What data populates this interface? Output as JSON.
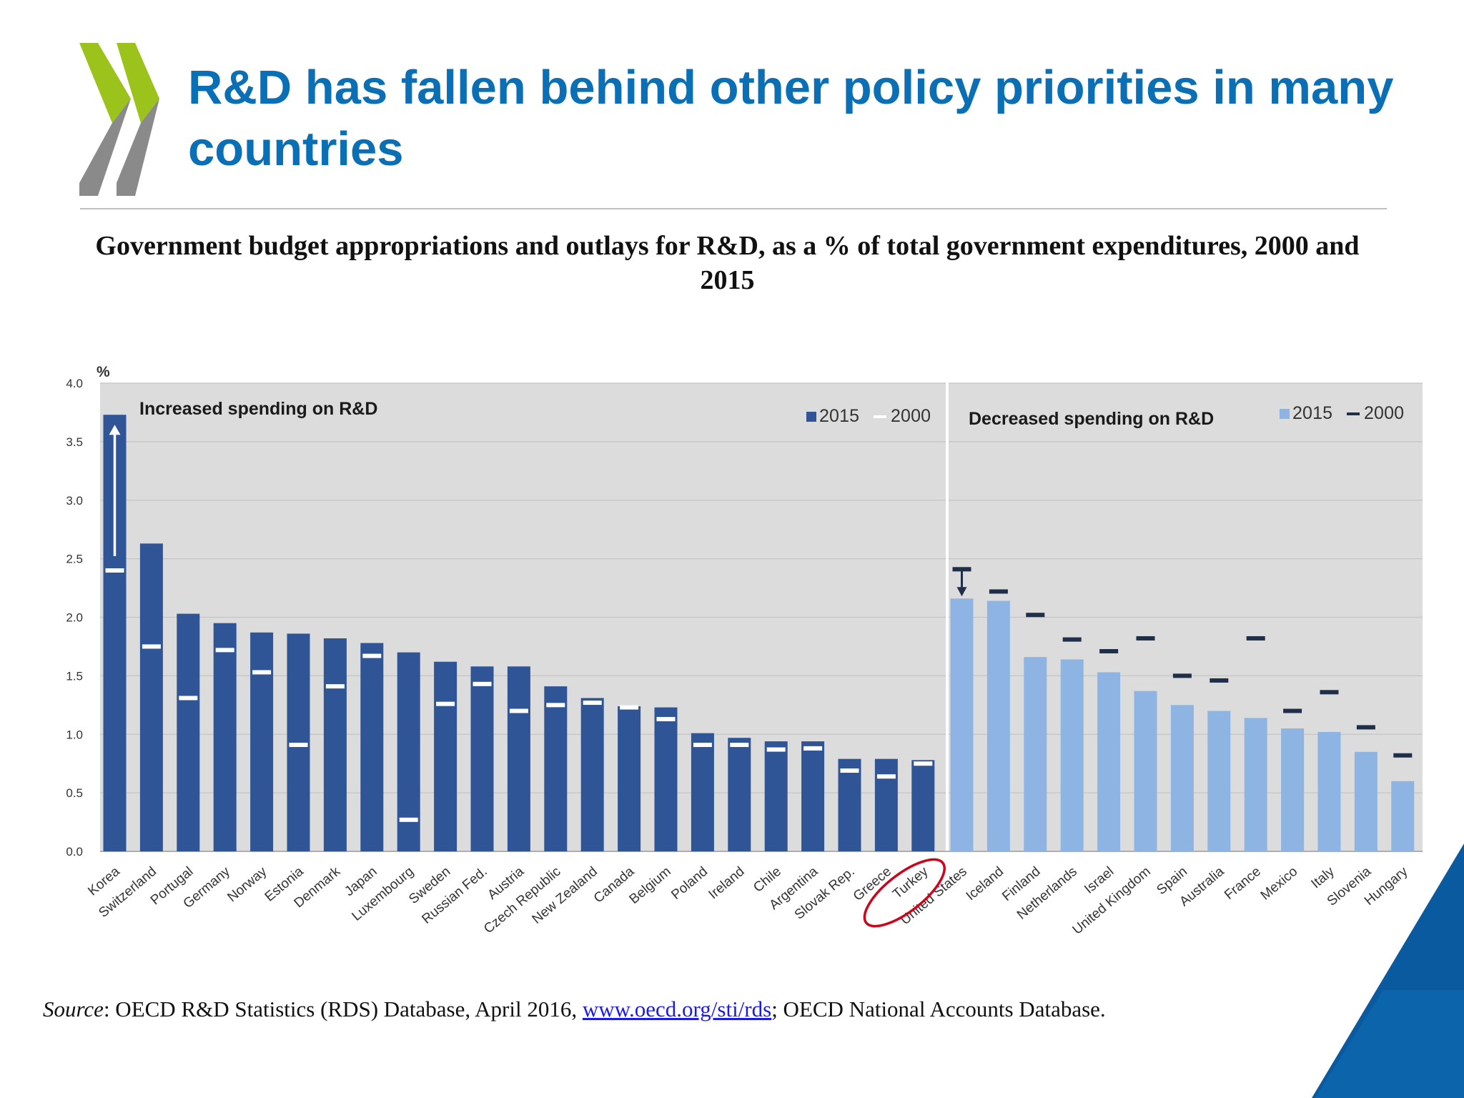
{
  "slide": {
    "title": "R&D has fallen behind other policy priorities in many countries"
  },
  "source": {
    "label": "Source",
    "text_before_link": ": OECD R&D Statistics (RDS) Database, April 2016, ",
    "link": "www.oecd.org/sti/rds",
    "text_after_link": "; OECD National Accounts Database."
  },
  "colors": {
    "title_blue": "#0b6fb5",
    "bar_dark": "#2f5597",
    "bar_light": "#8db4e2",
    "panel_bg": "#dcdcdc",
    "highlight_circle": "#d0021b",
    "logo_green": "#9cc31b",
    "logo_gray": "#8a8a8a",
    "corner_blue": "#0a5aa0"
  },
  "chart_data": {
    "type": "bar",
    "title": "Government budget appropriations and outlays for R&D, as a % of total government expenditures, 2000 and 2015",
    "ylabel": "%",
    "ylim": [
      0,
      4.0
    ],
    "yticks": [
      "0.0",
      "0.5",
      "1.0",
      "1.5",
      "2.0",
      "2.5",
      "3.0",
      "3.5",
      "4.0"
    ],
    "grid": true,
    "groups": [
      {
        "label": "Increased spending on R&D",
        "legend": [
          "2015",
          "2000"
        ],
        "color_2015": "#2f5597",
        "color_2000": "#ffffff",
        "categories": [
          "Korea",
          "Switzerland",
          "Portugal",
          "Germany",
          "Norway",
          "Estonia",
          "Denmark",
          "Japan",
          "Luxembourg",
          "Sweden",
          "Russian Fed.",
          "Austria",
          "Czech Republic",
          "New Zealand",
          "Canada",
          "Belgium",
          "Poland",
          "Ireland",
          "Chile",
          "Argentina",
          "Slovak Rep.",
          "Greece",
          "Turkey"
        ],
        "series": [
          {
            "name": "2015",
            "values": [
              3.73,
              2.63,
              2.03,
              1.95,
              1.87,
              1.86,
              1.82,
              1.78,
              1.7,
              1.62,
              1.58,
              1.58,
              1.41,
              1.31,
              1.24,
              1.23,
              1.01,
              0.97,
              0.94,
              0.94,
              0.79,
              0.79,
              0.78
            ]
          },
          {
            "name": "2000",
            "values": [
              2.4,
              1.75,
              1.31,
              1.72,
              1.53,
              0.91,
              1.41,
              1.67,
              0.27,
              1.26,
              1.43,
              1.2,
              1.25,
              1.27,
              1.23,
              1.13,
              0.91,
              0.91,
              0.87,
              0.88,
              0.69,
              0.64,
              0.75
            ]
          }
        ],
        "annotation": "arrow up on Korea"
      },
      {
        "label": "Decreased spending on R&D",
        "legend": [
          "2015",
          "2000"
        ],
        "color_2015": "#8db4e2",
        "color_2000": "#1f2f4a",
        "categories": [
          "United States",
          "Iceland",
          "Finland",
          "Netherlands",
          "Israel",
          "United Kingdom",
          "Spain",
          "Australia",
          "France",
          "Mexico",
          "Italy",
          "Slovenia",
          "Hungary"
        ],
        "series": [
          {
            "name": "2015",
            "values": [
              2.16,
              2.14,
              1.66,
              1.64,
              1.53,
              1.37,
              1.25,
              1.2,
              1.14,
              1.05,
              1.02,
              0.85,
              0.6
            ]
          },
          {
            "name": "2000",
            "values": [
              2.41,
              2.22,
              2.02,
              1.81,
              1.71,
              1.82,
              1.5,
              1.46,
              1.82,
              1.2,
              1.36,
              1.06,
              0.82
            ]
          }
        ],
        "annotation": "arrow down on United States"
      }
    ],
    "highlight": "Turkey"
  }
}
